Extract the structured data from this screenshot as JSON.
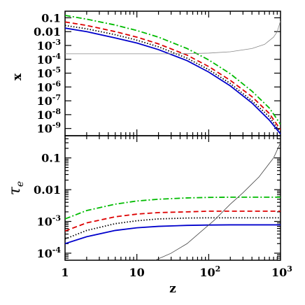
{
  "chart_data": [
    {
      "type": "line",
      "panel": "top",
      "ylabel": "x",
      "xscale": "log",
      "yscale": "log",
      "xlim": [
        1,
        1000
      ],
      "ylim": [
        3e-10,
        0.3
      ],
      "y_tick_labels": [
        {
          "value": 0.1,
          "label": "0.1"
        },
        {
          "value": 0.01,
          "label": "0.01"
        },
        {
          "value": 0.001,
          "label": "10",
          "exp": "-3"
        },
        {
          "value": 0.0001,
          "label": "10",
          "exp": "-4"
        },
        {
          "value": 1e-05,
          "label": "10",
          "exp": "-5"
        },
        {
          "value": 1e-06,
          "label": "10",
          "exp": "-6"
        },
        {
          "value": 1e-07,
          "label": "10",
          "exp": "-7"
        },
        {
          "value": 1e-08,
          "label": "10",
          "exp": "-8"
        },
        {
          "value": 1e-09,
          "label": "10",
          "exp": "-9"
        }
      ],
      "series": [
        {
          "color": "#00bb00",
          "dash": "dashdot",
          "x": [
            1,
            2,
            5,
            10,
            20,
            50,
            100,
            200,
            400,
            700,
            1000
          ],
          "y": [
            0.15,
            0.08,
            0.03,
            0.012,
            0.004,
            0.0006,
            9e-05,
            9e-06,
            5e-07,
            3e-08,
            2e-09
          ]
        },
        {
          "color": "#dd0000",
          "dash": "dashed",
          "x": [
            1,
            2,
            5,
            10,
            20,
            50,
            100,
            200,
            400,
            700,
            1000
          ],
          "y": [
            0.05,
            0.028,
            0.01,
            0.004,
            0.0013,
            0.0002,
            3e-05,
            3e-06,
            2e-07,
            1.2e-08,
            8e-10
          ]
        },
        {
          "color": "#000000",
          "dash": "dotted",
          "x": [
            1,
            2,
            5,
            10,
            20,
            50,
            100,
            200,
            400,
            700,
            1000
          ],
          "y": [
            0.028,
            0.016,
            0.006,
            0.0024,
            0.0008,
            0.00012,
            1.8e-05,
            1.8e-06,
            1e-07,
            7e-09,
            5e-10
          ]
        },
        {
          "color": "#0000cc",
          "dash": "solid",
          "x": [
            1,
            2,
            5,
            10,
            20,
            50,
            100,
            200,
            400,
            700,
            1000
          ],
          "y": [
            0.018,
            0.01,
            0.0035,
            0.0015,
            0.0005,
            8e-05,
            1.2e-05,
            1.2e-06,
            7e-08,
            4e-09,
            4e-10
          ]
        },
        {
          "color": "#888888",
          "dash": "solid",
          "thin": true,
          "x": [
            1,
            10,
            30,
            60,
            100,
            200,
            400,
            600,
            800,
            900,
            1000
          ],
          "y": [
            0.00025,
            0.00025,
            0.00025,
            0.00026,
            0.00028,
            0.00035,
            0.0006,
            0.0012,
            0.004,
            0.01,
            0.06
          ]
        }
      ]
    },
    {
      "type": "line",
      "panel": "bottom",
      "xlabel": "z",
      "ylabel": "τ",
      "ylabel_sub": "e",
      "xscale": "log",
      "yscale": "log",
      "xlim": [
        1,
        1000
      ],
      "ylim": [
        6e-05,
        0.5
      ],
      "x_tick_labels": [
        {
          "value": 1,
          "label": "1"
        },
        {
          "value": 10,
          "label": "10"
        },
        {
          "value": 100,
          "label": "10",
          "exp": "2"
        },
        {
          "value": 1000,
          "label": "10",
          "exp": "3"
        }
      ],
      "y_tick_labels": [
        {
          "value": 0.1,
          "label": "0.1"
        },
        {
          "value": 0.01,
          "label": "0.01"
        },
        {
          "value": 0.001,
          "label": "10",
          "exp": "-3"
        },
        {
          "value": 0.0001,
          "label": "10",
          "exp": "-4"
        }
      ],
      "series": [
        {
          "color": "#00bb00",
          "dash": "dashdot",
          "x": [
            1,
            2,
            5,
            10,
            20,
            50,
            100,
            200,
            500,
            1000
          ],
          "y": [
            0.0012,
            0.0022,
            0.0035,
            0.0044,
            0.005,
            0.0055,
            0.0057,
            0.0058,
            0.0058,
            0.0058
          ]
        },
        {
          "color": "#dd0000",
          "dash": "dashed",
          "x": [
            1,
            2,
            5,
            10,
            20,
            50,
            100,
            200,
            500,
            1000
          ],
          "y": [
            0.0005,
            0.0009,
            0.0014,
            0.0017,
            0.0019,
            0.002,
            0.0021,
            0.0021,
            0.0021,
            0.0021
          ]
        },
        {
          "color": "#000000",
          "dash": "dotted",
          "x": [
            1,
            2,
            5,
            10,
            20,
            50,
            100,
            200,
            500,
            1000
          ],
          "y": [
            0.00028,
            0.00052,
            0.00085,
            0.00105,
            0.0012,
            0.00128,
            0.0013,
            0.0013,
            0.0013,
            0.0013
          ]
        },
        {
          "color": "#0000cc",
          "dash": "solid",
          "x": [
            1,
            2,
            5,
            10,
            20,
            50,
            100,
            200,
            500,
            1000
          ],
          "y": [
            0.0002,
            0.00033,
            0.00052,
            0.00063,
            0.0007,
            0.00075,
            0.00077,
            0.00078,
            0.00078,
            0.00078
          ]
        },
        {
          "color": "#444444",
          "dash": "solid",
          "thin": true,
          "x": [
            18,
            30,
            50,
            80,
            120,
            200,
            300,
            500,
            800,
            1000
          ],
          "y": [
            6e-05,
            0.0001,
            0.0002,
            0.0005,
            0.0011,
            0.0035,
            0.008,
            0.025,
            0.1,
            0.3
          ]
        }
      ]
    }
  ]
}
